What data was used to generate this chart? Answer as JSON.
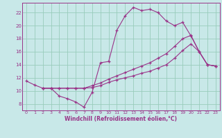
{
  "bg_color": "#c8e8e8",
  "grid_color": "#99ccbb",
  "line_color": "#993388",
  "xlabel": "Windchill (Refroidissement éolien,°C)",
  "xlim": [
    -0.5,
    23.5
  ],
  "ylim": [
    7.0,
    23.5
  ],
  "yticks": [
    8,
    10,
    12,
    14,
    16,
    18,
    20,
    22
  ],
  "xticks": [
    0,
    1,
    2,
    3,
    4,
    5,
    6,
    7,
    8,
    9,
    10,
    11,
    12,
    13,
    14,
    15,
    16,
    17,
    18,
    19,
    20,
    21,
    22,
    23
  ],
  "line1_x": [
    0,
    1,
    2,
    3,
    4,
    5,
    6,
    7,
    8,
    9,
    10,
    11,
    12,
    13,
    14,
    15,
    16,
    17,
    18,
    19,
    20,
    21,
    22,
    23
  ],
  "line1_y": [
    11.5,
    10.9,
    10.4,
    10.4,
    9.2,
    8.8,
    8.3,
    7.5,
    9.8,
    14.3,
    14.5,
    19.3,
    21.5,
    22.8,
    22.3,
    22.5,
    22.0,
    20.7,
    20.0,
    20.5,
    18.4,
    16.0,
    14.0,
    13.8
  ],
  "line2_x": [
    2,
    3,
    4,
    5,
    6,
    7,
    8,
    9,
    10,
    11,
    12,
    13,
    14,
    15,
    16,
    17,
    18,
    19,
    20,
    21,
    22,
    23
  ],
  "line2_y": [
    10.4,
    10.4,
    10.4,
    10.4,
    10.4,
    10.4,
    10.8,
    11.2,
    11.8,
    12.3,
    12.8,
    13.3,
    13.8,
    14.3,
    15.0,
    15.7,
    16.8,
    18.0,
    18.5,
    16.0,
    14.0,
    13.8
  ],
  "line3_x": [
    2,
    3,
    4,
    5,
    6,
    7,
    8,
    9,
    10,
    11,
    12,
    13,
    14,
    15,
    16,
    17,
    18,
    19,
    20,
    21,
    22,
    23
  ],
  "line3_y": [
    10.4,
    10.4,
    10.4,
    10.4,
    10.4,
    10.4,
    10.5,
    10.8,
    11.3,
    11.7,
    12.0,
    12.3,
    12.7,
    13.0,
    13.5,
    14.0,
    15.0,
    16.2,
    17.2,
    16.0,
    14.0,
    13.8
  ]
}
